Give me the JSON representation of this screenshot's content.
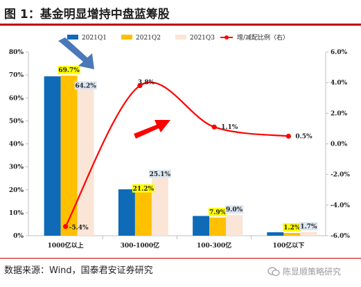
{
  "header": {
    "title": "图 1：基金明显增持中盘蓝筹股"
  },
  "footer": {
    "source": "数据来源：Wind，国泰君安证券研究",
    "watermark": "陈显顺策略研究"
  },
  "colors": {
    "accent_red": "#c00000",
    "q1": "#0f6ab8",
    "q2": "#ffc000",
    "q3": "#fbe5d6",
    "line": "#ff0000",
    "arrow_blue": "#4a78b8",
    "arrow_red": "#ff0000",
    "highlight_yellow": "#ffff00",
    "highlight_blue": "#dce6f2"
  },
  "chart_data": {
    "type": "bar",
    "categories": [
      "1000亿以上",
      "300-1000亿",
      "100-300亿",
      "100亿以下"
    ],
    "series": [
      {
        "name": "2021Q1",
        "values": [
          69.4,
          20.2,
          8.6,
          1.5
        ],
        "axis": "left",
        "labels": [
          "",
          "",
          "",
          ""
        ]
      },
      {
        "name": "2021Q2",
        "values": [
          69.7,
          21.2,
          7.9,
          1.2
        ],
        "axis": "left",
        "labels": [
          "69.7%",
          "21.2%",
          "7.9%",
          "1.2%"
        ]
      },
      {
        "name": "2021Q3",
        "values": [
          64.2,
          25.1,
          9.0,
          1.7
        ],
        "axis": "left",
        "labels": [
          "64.2%",
          "25.1%",
          "9.0%",
          "1.7%"
        ]
      },
      {
        "name": "增/减配比例（右）",
        "type": "line",
        "values": [
          -5.4,
          3.8,
          1.1,
          0.5
        ],
        "axis": "right",
        "labels": [
          "-5.4%",
          "3.8%",
          "1.1%",
          "0.5%"
        ]
      }
    ],
    "left_axis": {
      "ylim": [
        0,
        80
      ],
      "ticks": [
        "0%",
        "10%",
        "20%",
        "30%",
        "40%",
        "50%",
        "60%",
        "70%",
        "80%"
      ]
    },
    "right_axis": {
      "ylim": [
        -6,
        6
      ],
      "ticks": [
        "-6.0%",
        "-4.0%",
        "-2.0%",
        "0.0%",
        "2.0%",
        "4.0%",
        "6.0%"
      ]
    },
    "legend": {
      "placement": "top",
      "entries": [
        "2021Q1",
        "2021Q2",
        "2021Q3",
        "增/减配比例（右）"
      ]
    },
    "grid": false
  }
}
